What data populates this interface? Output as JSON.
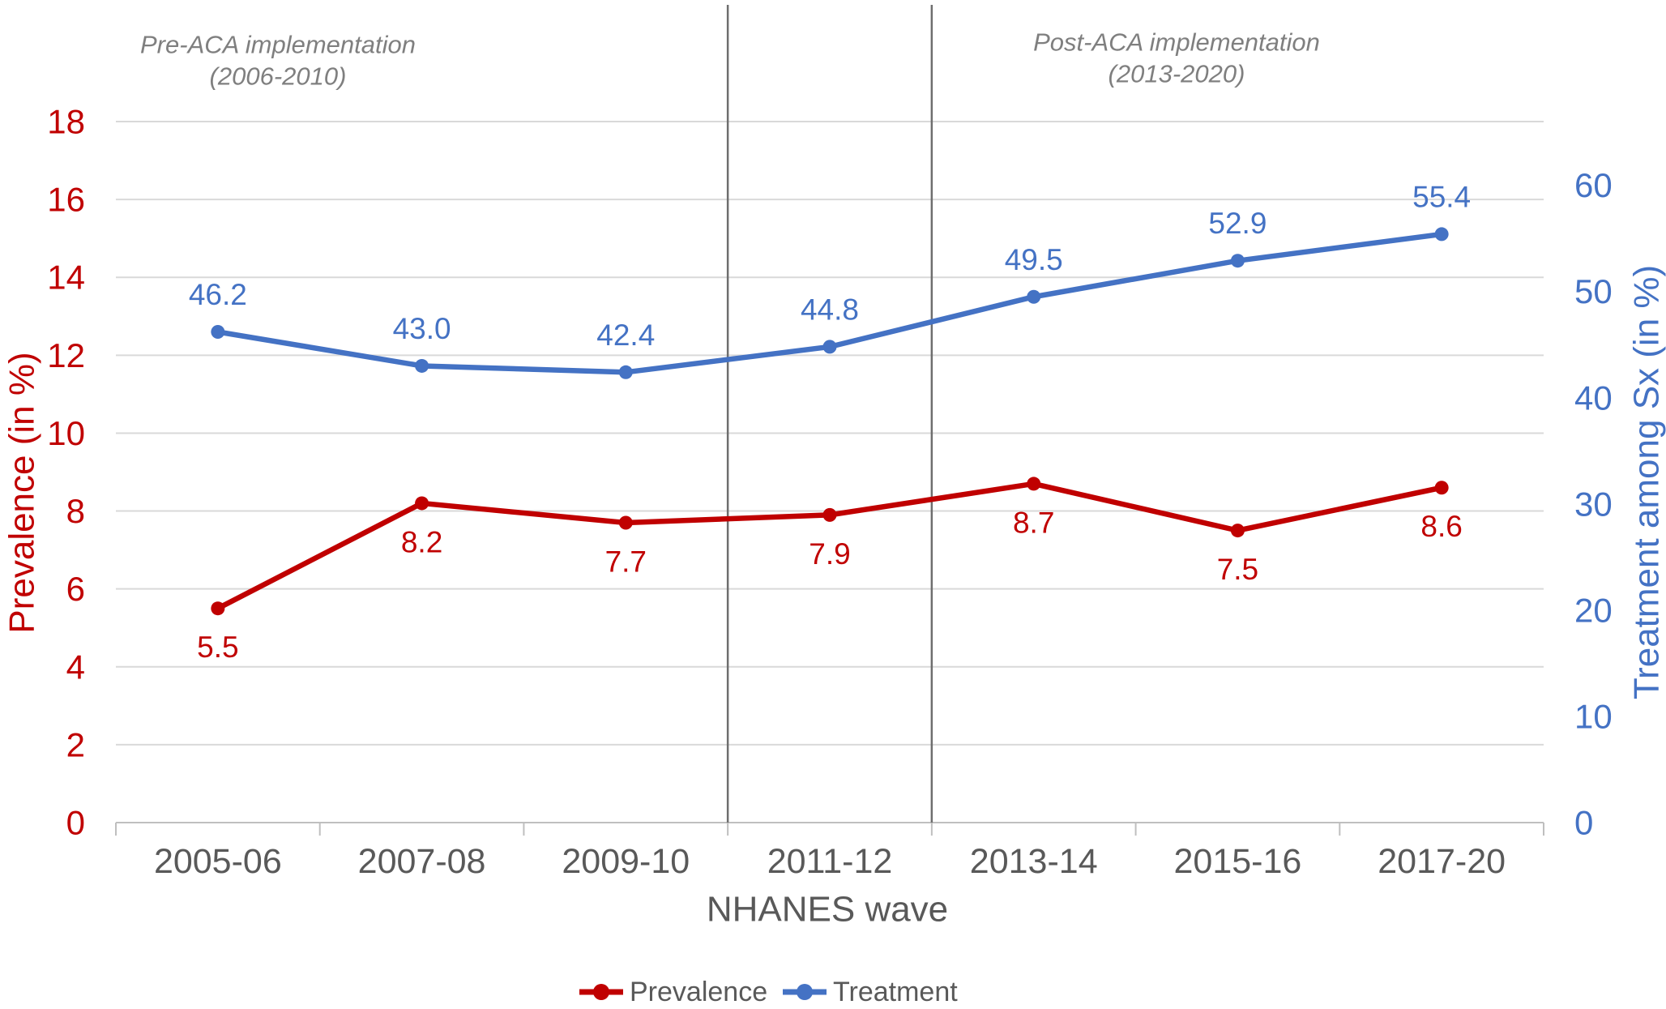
{
  "chart_data": {
    "type": "line",
    "categories": [
      "2005-06",
      "2007-08",
      "2009-10",
      "2011-12",
      "2013-14",
      "2015-16",
      "2017-20"
    ],
    "xlabel": "NHANES wave",
    "series": [
      {
        "name": "Prevalence",
        "axis": "left",
        "color": "#C00000",
        "values": [
          5.5,
          8.2,
          7.7,
          7.9,
          8.7,
          7.5,
          8.6
        ],
        "labels": [
          "5.5",
          "8.2",
          "7.7",
          "7.9",
          "8.7",
          "7.5",
          "8.6"
        ],
        "label_position": "below"
      },
      {
        "name": "Treatment",
        "axis": "right",
        "color": "#4472C4",
        "values": [
          46.2,
          43.0,
          42.4,
          44.8,
          49.5,
          52.9,
          55.4
        ],
        "labels": [
          "46.2",
          "43.0",
          "42.4",
          "44.8",
          "49.5",
          "52.9",
          "55.4"
        ],
        "label_position": "above"
      }
    ],
    "left_axis": {
      "title": "Prevalence (in %)",
      "color": "#C00000",
      "min": 0,
      "max": 18,
      "tick_step": 2
    },
    "right_axis": {
      "title": "Treatment among Sx (in %)",
      "color": "#4472C4",
      "min": 0,
      "scale_max": 66,
      "tick_max": 60,
      "tick_step": 10
    },
    "annotations": [
      {
        "line1": "Pre-ACA implementation",
        "line2": "(2006-2010)"
      },
      {
        "line1": "Post-ACA implementation",
        "line2": "(2013-2020)"
      }
    ],
    "dividers_at_boundaries": [
      3,
      4
    ],
    "grid": true,
    "legend_position": "bottom",
    "styles": {
      "background": "#FFFFFF",
      "grid_color": "#D9D9D9",
      "axis_line_color": "#BFBFBF",
      "divider_color": "#6E6E6E",
      "annotation_color": "#7F7F7F",
      "category_label_color": "#595959",
      "legend_text_color": "#595959"
    }
  }
}
